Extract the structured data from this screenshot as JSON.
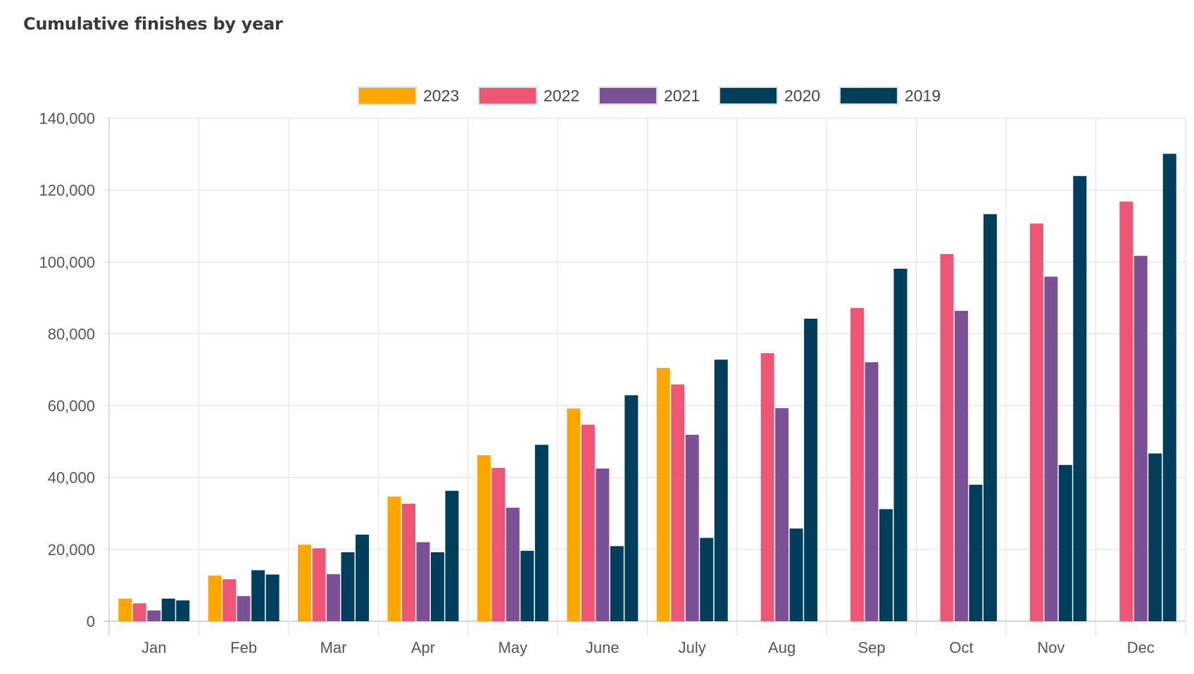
{
  "chart_data": {
    "type": "bar",
    "title": "Cumulative finishes by year",
    "categories": [
      "Jan",
      "Feb",
      "Mar",
      "Apr",
      "May",
      "June",
      "July",
      "Aug",
      "Sep",
      "Oct",
      "Nov",
      "Dec"
    ],
    "series": [
      {
        "name": "2023",
        "color": "#FFA600",
        "values": [
          6300,
          12700,
          21300,
          34700,
          46200,
          59200,
          70500,
          null,
          null,
          null,
          null,
          null
        ]
      },
      {
        "name": "2022",
        "color": "#EF5675",
        "values": [
          5000,
          11700,
          20300,
          32700,
          42700,
          54700,
          65900,
          74600,
          87200,
          102200,
          110700,
          116800
        ]
      },
      {
        "name": "2021",
        "color": "#7A5195",
        "values": [
          3000,
          7000,
          13100,
          22000,
          31600,
          42500,
          51900,
          59300,
          72100,
          86400,
          95900,
          101700
        ]
      },
      {
        "name": "2020",
        "color": "#003F5C",
        "values": [
          6300,
          14200,
          19200,
          19200,
          19600,
          20900,
          23200,
          25800,
          31200,
          38000,
          43500,
          46700
        ]
      },
      {
        "name": "2019",
        "color": "#003F5C",
        "values": [
          5800,
          13000,
          24100,
          36300,
          49100,
          62900,
          72800,
          84200,
          98100,
          113300,
          123900,
          130100
        ]
      }
    ],
    "y_ticks": [
      "0",
      "20,000",
      "40,000",
      "60,000",
      "80,000",
      "100,000",
      "120,000",
      "140,000"
    ],
    "ylim": [
      0,
      140000
    ],
    "legend_position": "top-center",
    "grid": true
  }
}
